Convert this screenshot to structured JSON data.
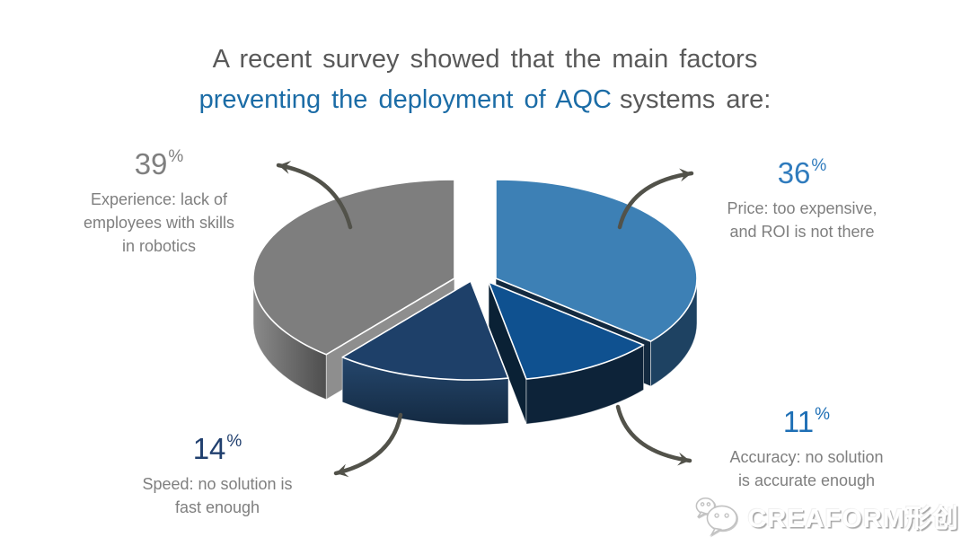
{
  "title": {
    "line1": "A recent survey showed that the main factors",
    "line2_highlight": "preventing the deployment of AQC",
    "line2_rest": "systems are:",
    "color_plain": "#595959",
    "color_highlight": "#1B6CA6"
  },
  "chart_data": {
    "type": "pie",
    "style": "3d-exploded",
    "unit": "%",
    "start_angle_deg": 0,
    "direction": "clockwise",
    "slices": [
      {
        "id": "price",
        "value": 36,
        "desc": "Price: too expensive, and ROI is not there",
        "color_top": "#3D80B5",
        "color_side": "#1E4262",
        "color_face": "#132A40"
      },
      {
        "id": "accuracy",
        "value": 11,
        "desc": "Accuracy: no solution is accurate enough",
        "color_top": "#0F5190",
        "color_side": "#0D2339",
        "color_face": "#0A2135"
      },
      {
        "id": "speed",
        "value": 14,
        "desc": "Speed: no solution is fast enough",
        "color_top": "#1E4069",
        "color_side_gradient": [
          "#25476D",
          "#142A42"
        ],
        "color_side": "#1B3555"
      },
      {
        "id": "experience",
        "value": 39,
        "desc": "Experience: lack of employees with skills in robotics",
        "color_top": "#7E7E7E",
        "color_side_gradient": [
          "#8A8A8A",
          "#4E4E4E"
        ],
        "color_side": "#666666",
        "color_face": "#8E8E8E"
      }
    ]
  },
  "callouts": {
    "experience": {
      "value": "39",
      "pct": "%",
      "number_color": "#7F7F7F",
      "lines": [
        "Experience: lack of",
        "employees with skills",
        "in robotics"
      ]
    },
    "price": {
      "value": "36",
      "pct": "%",
      "number_color": "#2F7BBD",
      "lines": [
        "Price: too expensive,",
        "and ROI is not there"
      ]
    },
    "speed": {
      "value": "14",
      "pct": "%",
      "number_color": "#203F6E",
      "lines": [
        "Speed: no solution is",
        "fast enough"
      ]
    },
    "accuracy": {
      "value": "11",
      "pct": "%",
      "number_color": "#1E6FB5",
      "lines": [
        "Accuracy: no solution",
        "is accurate enough"
      ]
    }
  },
  "arrows": {
    "color": "#52524A"
  },
  "logo": {
    "text": "CREAFORM形创",
    "icon": "wechat-icon"
  }
}
